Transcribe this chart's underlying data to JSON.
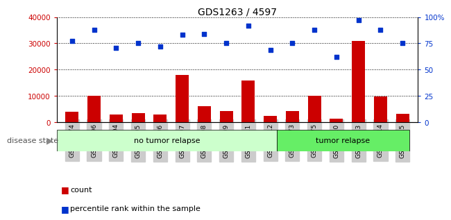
{
  "title": "GDS1263 / 4597",
  "samples": [
    "GSM50474",
    "GSM50496",
    "GSM50504",
    "GSM50505",
    "GSM50506",
    "GSM50507",
    "GSM50508",
    "GSM50509",
    "GSM50511",
    "GSM50512",
    "GSM50473",
    "GSM50475",
    "GSM50510",
    "GSM50513",
    "GSM50514",
    "GSM50515"
  ],
  "counts": [
    4000,
    10200,
    3000,
    3500,
    3000,
    18000,
    6200,
    4200,
    16000,
    2500,
    4200,
    10200,
    1400,
    31000,
    9800,
    3200
  ],
  "percentiles": [
    77,
    88,
    71,
    75,
    72,
    83,
    84,
    75,
    92,
    69,
    75,
    88,
    62,
    97,
    88,
    75
  ],
  "no_tumor_count": 10,
  "tumor_count": 6,
  "ylim_left": [
    0,
    40000
  ],
  "ylim_right": [
    0,
    100
  ],
  "yticks_left": [
    0,
    10000,
    20000,
    30000,
    40000
  ],
  "yticks_right": [
    0,
    25,
    50,
    75,
    100
  ],
  "ytick_labels_right": [
    "0",
    "25",
    "50",
    "75",
    "100%"
  ],
  "bar_color": "#cc0000",
  "dot_color": "#0033cc",
  "tick_color_left": "#cc0000",
  "tick_color_right": "#0033cc",
  "legend_count_label": "count",
  "legend_pct_label": "percentile rank within the sample",
  "disease_state_label": "disease state",
  "no_tumor_label": "no tumor relapse",
  "tumor_label": "tumor relapse",
  "no_tumor_color": "#ccffcc",
  "tumor_color": "#66ee66",
  "sample_box_color": "#cccccc",
  "grid_color": "black",
  "main_axes": [
    0.115,
    0.47,
    0.8,
    0.44
  ],
  "ds_axes": [
    0.115,
    0.35,
    0.8,
    0.09
  ]
}
